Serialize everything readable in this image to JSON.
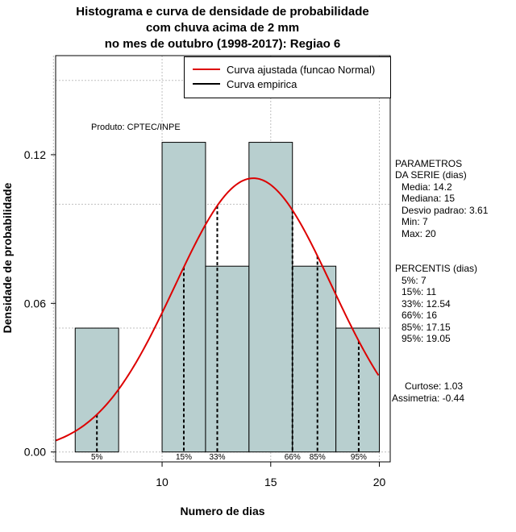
{
  "title_lines": [
    "Histograma e curva de densidade de probabilidade",
    "com chuva acima de 2 mm",
    "no mes de outubro (1998-2017): Regiao 6"
  ],
  "produto": "Produto: CPTEC/INPE",
  "legend": {
    "fitted": "Curva ajustada (funcao Normal)",
    "empirical": "Curva empirica"
  },
  "parametros": {
    "header1": "PARAMETROS",
    "header2": "DA SERIE (dias)",
    "media": "Media: 14.2",
    "mediana": "Mediana: 15",
    "desvio": "Desvio padrao: 3.61",
    "min": "Min: 7",
    "max": "Max: 20"
  },
  "percentis": {
    "header": "PERCENTIS (dias)",
    "p5": "5%: 7",
    "p15": "15%: 11",
    "p33": "33%: 12.54",
    "p66": "66%: 16",
    "p85": "85%: 17.15",
    "p95": "95%: 19.05"
  },
  "stats": {
    "curtose": "Curtose: 1.03",
    "assimetria": "Assimetria: -0.44"
  },
  "colors": {
    "bar_fill": "#b8cfcf",
    "fitted_curve": "#dd0000",
    "grid": "#bfbfbf"
  },
  "chart_data": {
    "type": "bar",
    "title": "Histograma e curva de densidade de probabilidade com chuva acima de 2 mm no mes de outubro (1998-2017): Regiao 6",
    "xlabel": "Numero de dias",
    "ylabel": "Densidade de probabilidade",
    "xlim": [
      5.1,
      20.5
    ],
    "ylim": [
      -0.004,
      0.16
    ],
    "xticks": [
      10,
      15,
      20
    ],
    "yticks": [
      0.0,
      0.06,
      0.12
    ],
    "ytick_labels": [
      "0.00",
      "0.06",
      "0.12"
    ],
    "xgrid": [
      5,
      10,
      15,
      20
    ],
    "ygrid": [
      0.0,
      0.05,
      0.1,
      0.15
    ],
    "bins": [
      {
        "x0": 6,
        "x1": 8,
        "density": 0.05
      },
      {
        "x0": 8,
        "x1": 10,
        "density": 0.0
      },
      {
        "x0": 10,
        "x1": 12,
        "density": 0.125
      },
      {
        "x0": 12,
        "x1": 14,
        "density": 0.075
      },
      {
        "x0": 14,
        "x1": 16,
        "density": 0.125
      },
      {
        "x0": 16,
        "x1": 18,
        "density": 0.075
      },
      {
        "x0": 18,
        "x1": 20,
        "density": 0.05
      }
    ],
    "normal_fit": {
      "mean": 14.2,
      "sd": 3.61
    },
    "percentile_markers": [
      {
        "label": "5%",
        "x": 7
      },
      {
        "label": "15%",
        "x": 11
      },
      {
        "label": "33%",
        "x": 12.54
      },
      {
        "label": "66%",
        "x": 16
      },
      {
        "label": "85%",
        "x": 17.15
      },
      {
        "label": "95%",
        "x": 19.05
      }
    ]
  }
}
